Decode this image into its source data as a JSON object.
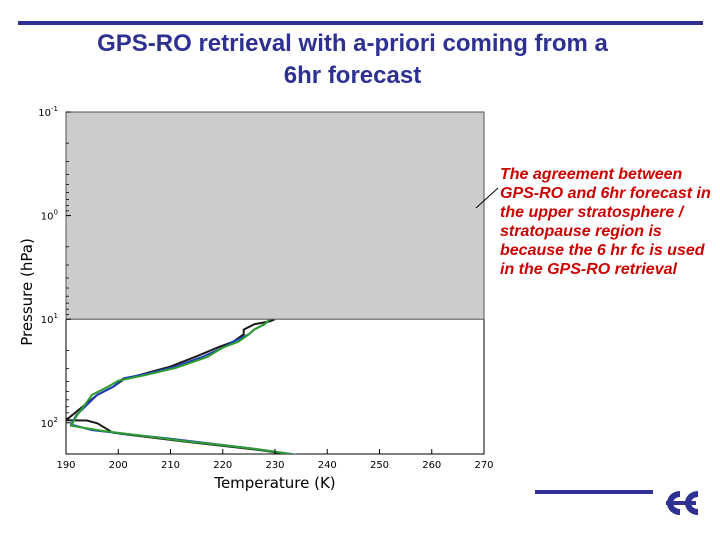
{
  "slide": {
    "title_line1": "GPS-RO retrieval with a-priori coming from a",
    "title_line2": "6hr forecast",
    "annotation": "The agreement between GPS-RO and 6hr forecast in the upper stratosphere / stratopause region is because the 6 hr fc is used in the GPS-RO retrieval",
    "accent_color": "#2e3192",
    "annotation_color": "#cc0000",
    "logo_icon": "ecmwf-logo-icon"
  },
  "chart_data": {
    "type": "line",
    "xlabel": "Temperature (K)",
    "ylabel": "Pressure (hPa)",
    "xlim": [
      190,
      270
    ],
    "ylim": [
      0.1,
      200
    ],
    "y_scale": "log",
    "y_inverted": true,
    "xticks": [
      "190",
      "200",
      "210",
      "220",
      "230",
      "240",
      "250",
      "260",
      "270"
    ],
    "yticks": [
      {
        "base": "10",
        "exp": "-1",
        "value": 0.1
      },
      {
        "base": "10",
        "exp": "0",
        "value": 1
      },
      {
        "base": "10",
        "exp": "1",
        "value": 10
      },
      {
        "base": "10",
        "exp": "2",
        "value": 100
      }
    ],
    "overlay_note": "upper part of the plot covered by a grey box",
    "series": [
      {
        "color": "#1a1a1a",
        "points": [
          [
            230,
            10.0
          ],
          [
            229,
            10.5
          ],
          [
            226,
            11.2
          ],
          [
            224,
            12.6
          ],
          [
            224,
            14.0
          ],
          [
            222,
            16.5
          ],
          [
            219,
            18.8
          ],
          [
            215,
            22.8
          ],
          [
            210,
            28.7
          ],
          [
            207,
            31.5
          ],
          [
            201,
            38.2
          ],
          [
            199,
            45.0
          ],
          [
            196,
            53.7
          ],
          [
            190,
            94.4
          ],
          [
            194,
            95.0
          ],
          [
            196,
            101.0
          ],
          [
            199,
            124.6
          ],
          [
            212,
            150.0
          ],
          [
            227,
            182.9
          ],
          [
            240,
            228.5
          ]
        ]
      },
      {
        "color": "#1f3fbf",
        "points": [
          [
            229,
            10.0
          ],
          [
            228,
            11.2
          ],
          [
            226,
            12.6
          ],
          [
            225,
            14.0
          ],
          [
            222,
            16.5
          ],
          [
            220,
            18.8
          ],
          [
            216,
            23.2
          ],
          [
            211,
            28.7
          ],
          [
            206,
            33.2
          ],
          [
            201,
            37.2
          ],
          [
            199,
            45.0
          ],
          [
            196,
            53.7
          ],
          [
            192,
            84.0
          ],
          [
            191,
            104.0
          ],
          [
            195,
            117.5
          ],
          [
            210,
            142.6
          ],
          [
            225,
            175.3
          ],
          [
            240,
            223.5
          ]
        ]
      },
      {
        "color": "#2e9e2e",
        "points": [
          [
            229,
            10.0
          ],
          [
            228,
            11.2
          ],
          [
            226,
            12.6
          ],
          [
            225,
            14.0
          ],
          [
            223,
            16.5
          ],
          [
            220,
            18.8
          ],
          [
            217,
            23.2
          ],
          [
            211,
            29.5
          ],
          [
            205,
            34.8
          ],
          [
            200,
            39.2
          ],
          [
            198,
            45.0
          ],
          [
            195,
            53.7
          ],
          [
            192,
            86.3
          ],
          [
            191,
            106.6
          ],
          [
            197,
            119.7
          ],
          [
            212,
            148.6
          ],
          [
            226,
            178.0
          ],
          [
            240,
            226.0
          ]
        ]
      }
    ]
  }
}
